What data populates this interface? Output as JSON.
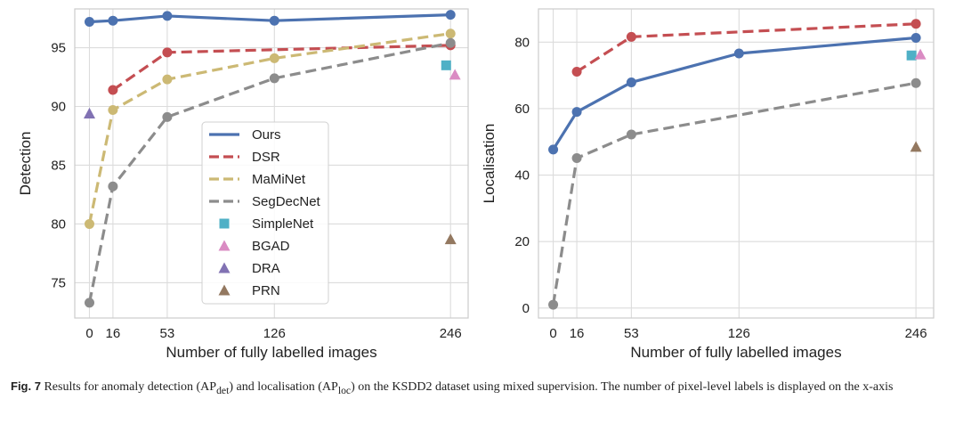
{
  "chart_data": [
    {
      "type": "line",
      "ylabel": "Detection",
      "xlabel": "Number of fully labelled images",
      "x_ticks": [
        0,
        16,
        53,
        126,
        246
      ],
      "y_ticks": [
        75,
        80,
        85,
        90,
        95
      ],
      "xlim": [
        -10,
        258
      ],
      "ylim": [
        72.0,
        98.3
      ],
      "grid": true,
      "legend_position": "center",
      "series": [
        {
          "name": "Ours",
          "style": "solid",
          "color": "#4c72b0",
          "x": [
            0,
            16,
            53,
            126,
            246
          ],
          "y": [
            97.2,
            97.3,
            97.7,
            97.3,
            97.8
          ]
        },
        {
          "name": "DSR",
          "style": "dashed",
          "color": "#c44e52",
          "x": [
            16,
            53,
            246
          ],
          "y": [
            91.4,
            94.6,
            95.2
          ]
        },
        {
          "name": "MaMiNet",
          "style": "dashed",
          "color": "#ccb974",
          "x": [
            0,
            16,
            53,
            126,
            246
          ],
          "y": [
            80.0,
            89.7,
            92.3,
            94.1,
            96.2
          ]
        },
        {
          "name": "SegDecNet",
          "style": "dashed",
          "color": "#8c8c8c",
          "x": [
            0,
            16,
            53,
            126,
            246
          ],
          "y": [
            73.3,
            83.2,
            89.1,
            92.4,
            95.4
          ]
        }
      ],
      "markers": [
        {
          "name": "SimpleNet",
          "shape": "square",
          "color": "#4fb0c6",
          "x": 243,
          "y": 93.5
        },
        {
          "name": "BGAD",
          "shape": "triangle",
          "color": "#da8bc3",
          "x": 249,
          "y": 92.7
        },
        {
          "name": "DRA",
          "shape": "triangle",
          "color": "#8172b3",
          "x": 0,
          "y": 89.4
        },
        {
          "name": "PRN",
          "shape": "triangle",
          "color": "#937860",
          "x": 246,
          "y": 78.7
        }
      ],
      "legend": [
        "Ours",
        "DSR",
        "MaMiNet",
        "SegDecNet",
        "SimpleNet",
        "BGAD",
        "DRA",
        "PRN"
      ]
    },
    {
      "type": "line",
      "ylabel": "Localisation",
      "xlabel": "Number of fully labelled images",
      "x_ticks": [
        0,
        16,
        53,
        126,
        246
      ],
      "y_ticks": [
        0,
        20,
        40,
        60,
        80
      ],
      "xlim": [
        -10,
        258
      ],
      "ylim": [
        -3,
        90
      ],
      "grid": true,
      "series": [
        {
          "name": "Ours",
          "style": "solid",
          "color": "#4c72b0",
          "x": [
            0,
            16,
            53,
            126,
            246
          ],
          "y": [
            47.7,
            59.0,
            67.9,
            76.6,
            81.3
          ]
        },
        {
          "name": "DSR",
          "style": "dashed",
          "color": "#c44e52",
          "x": [
            16,
            53,
            246
          ],
          "y": [
            71.1,
            81.6,
            85.5
          ]
        },
        {
          "name": "SegDecNet",
          "style": "dashed",
          "color": "#8c8c8c",
          "x": [
            0,
            16,
            53,
            246
          ],
          "y": [
            1.0,
            45.1,
            52.2,
            67.7
          ]
        }
      ],
      "markers": [
        {
          "name": "SimpleNet",
          "shape": "square",
          "color": "#4fb0c6",
          "x": 243,
          "y": 76.0
        },
        {
          "name": "BGAD",
          "shape": "triangle",
          "color": "#da8bc3",
          "x": 249,
          "y": 76.3
        },
        {
          "name": "PRN",
          "shape": "triangle",
          "color": "#937860",
          "x": 246,
          "y": 48.5
        }
      ]
    }
  ],
  "caption": {
    "label": "Fig. 7",
    "text_1": "Results for anomaly detection (AP",
    "sub_1": "det",
    "text_2": ") and localisation (AP",
    "sub_2": "loc",
    "text_3": ") on the KSDD2 dataset using mixed supervision. The number of pixel-level labels is displayed on the x-axis"
  }
}
